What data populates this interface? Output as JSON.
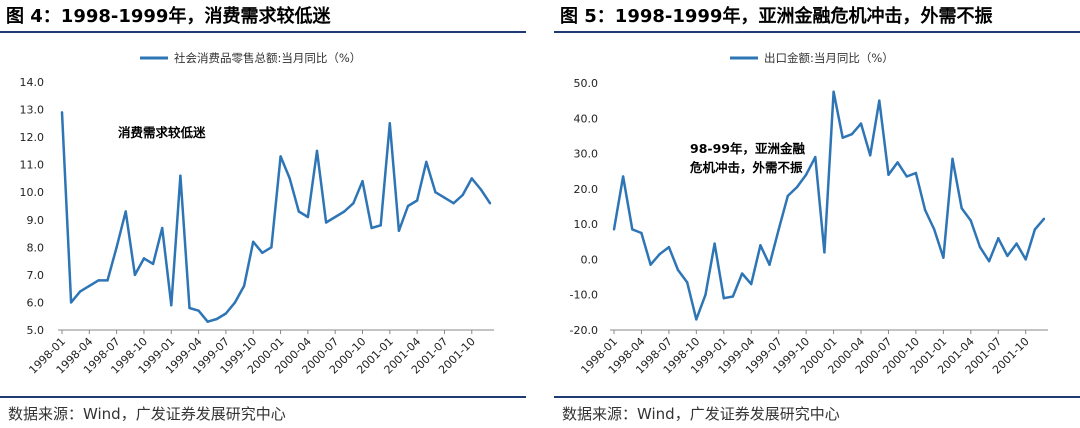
{
  "colors": {
    "line": "#2e75b6",
    "rule": "#1f3b73"
  },
  "left": {
    "title": "图 4：1998-1999年，消费需求较低迷",
    "source": "数据来源：Wind，广发证券发展研究中心"
  },
  "right": {
    "title": "图 5：1998-1999年，亚洲金融危机冲击，外需不振",
    "source": "数据来源：Wind，广发证券发展研究中心"
  },
  "chart_data": [
    {
      "type": "line",
      "series_name": "社会消费品零售总额:当月同比（%）",
      "annotation": [
        "消费需求较低迷"
      ],
      "ylim": [
        5.0,
        14.0
      ],
      "yticks": [
        "5.0",
        "6.0",
        "7.0",
        "8.0",
        "9.0",
        "10.0",
        "11.0",
        "12.0",
        "13.0",
        "14.0"
      ],
      "xticks": [
        "1998-01",
        "1998-04",
        "1998-07",
        "1998-10",
        "1999-01",
        "1999-04",
        "1999-07",
        "1999-10",
        "2000-01",
        "2000-04",
        "2000-07",
        "2000-10",
        "2001-01",
        "2001-04",
        "2001-07",
        "2001-10"
      ],
      "x": [
        "1998-01",
        "1998-02",
        "1998-03",
        "1998-04",
        "1998-05",
        "1998-06",
        "1998-07",
        "1998-08",
        "1998-09",
        "1998-10",
        "1998-11",
        "1998-12",
        "1999-01",
        "1999-02",
        "1999-03",
        "1999-04",
        "1999-05",
        "1999-06",
        "1999-07",
        "1999-08",
        "1999-09",
        "1999-10",
        "1999-11",
        "1999-12",
        "2000-01",
        "2000-02",
        "2000-03",
        "2000-04",
        "2000-05",
        "2000-06",
        "2000-07",
        "2000-08",
        "2000-09",
        "2000-10",
        "2000-11",
        "2000-12",
        "2001-01",
        "2001-02",
        "2001-03",
        "2001-04",
        "2001-05",
        "2001-06",
        "2001-07",
        "2001-08",
        "2001-09",
        "2001-10",
        "2001-11",
        "2001-12"
      ],
      "values": [
        12.9,
        6.0,
        6.4,
        6.6,
        6.8,
        6.8,
        8.0,
        9.3,
        7.0,
        7.6,
        7.4,
        8.7,
        5.9,
        10.6,
        5.8,
        5.7,
        5.3,
        5.4,
        5.6,
        6.0,
        6.6,
        8.2,
        7.8,
        8.0,
        11.3,
        10.5,
        9.3,
        9.1,
        11.5,
        8.9,
        9.1,
        9.3,
        9.6,
        10.4,
        8.7,
        8.8,
        12.5,
        8.6,
        9.5,
        9.7,
        11.1,
        10.0,
        9.8,
        9.6,
        9.9,
        10.5,
        10.1,
        9.6
      ]
    },
    {
      "type": "line",
      "series_name": "出口金额:当月同比（%）",
      "annotation": [
        "98-99年，亚洲金融",
        "危机冲击，外需不振"
      ],
      "ylim": [
        -20.0,
        50.0
      ],
      "yticks": [
        "-20.0",
        "-10.0",
        "0.0",
        "10.0",
        "20.0",
        "30.0",
        "40.0",
        "50.0"
      ],
      "xticks": [
        "1998-01",
        "1998-04",
        "1998-07",
        "1998-10",
        "1999-01",
        "1999-04",
        "1999-07",
        "1999-10",
        "2000-01",
        "2000-04",
        "2000-07",
        "2000-10",
        "2001-01",
        "2001-04",
        "2001-07",
        "2001-10"
      ],
      "x": [
        "1998-01",
        "1998-02",
        "1998-03",
        "1998-04",
        "1998-05",
        "1998-06",
        "1998-07",
        "1998-08",
        "1998-09",
        "1998-10",
        "1998-11",
        "1998-12",
        "1999-01",
        "1999-02",
        "1999-03",
        "1999-04",
        "1999-05",
        "1999-06",
        "1999-07",
        "1999-08",
        "1999-09",
        "1999-10",
        "1999-11",
        "1999-12",
        "2000-01",
        "2000-02",
        "2000-03",
        "2000-04",
        "2000-05",
        "2000-06",
        "2000-07",
        "2000-08",
        "2000-09",
        "2000-10",
        "2000-11",
        "2000-12",
        "2001-01",
        "2001-02",
        "2001-03",
        "2001-04",
        "2001-05",
        "2001-06",
        "2001-07",
        "2001-08",
        "2001-09",
        "2001-10",
        "2001-11",
        "2001-12"
      ],
      "values": [
        8.5,
        23.5,
        8.5,
        7.5,
        -1.5,
        1.5,
        3.5,
        -3.0,
        -6.5,
        -17.0,
        -10.0,
        4.5,
        -11.0,
        -10.5,
        -4.0,
        -7.0,
        4.0,
        -1.5,
        8.5,
        18.0,
        20.5,
        24.0,
        29.0,
        2.0,
        47.5,
        34.5,
        35.5,
        38.5,
        29.5,
        45.0,
        24.0,
        27.5,
        23.5,
        24.5,
        14.0,
        8.5,
        0.5,
        28.5,
        14.5,
        11.0,
        3.5,
        -0.5,
        6.0,
        1.0,
        4.5,
        0.0,
        8.5,
        11.5
      ]
    }
  ]
}
